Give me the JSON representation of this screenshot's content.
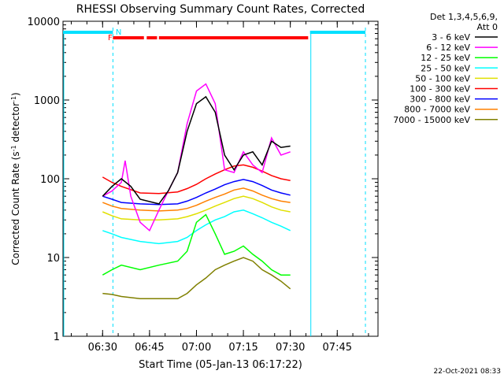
{
  "chart_data": {
    "type": "line",
    "title": "RHESSI Observing Summary Count Rates, Corrected",
    "xlabel": "Start Time (05-Jan-13 06:17:22)",
    "ylabel_main": "Corrected Count Rate (s",
    "ylabel_sup1": "-1",
    "ylabel_mid": " detector",
    "ylabel_sup2": "-1",
    "ylabel_end": ")",
    "y_scale": "log",
    "ylim": [
      1,
      10000
    ],
    "xlim": [
      6.289,
      7.967
    ],
    "x_ticks": [
      {
        "v": 6.5,
        "label": "06:30"
      },
      {
        "v": 6.75,
        "label": "06:45"
      },
      {
        "v": 7.0,
        "label": "07:00"
      },
      {
        "v": 7.25,
        "label": "07:15"
      },
      {
        "v": 7.5,
        "label": "07:30"
      },
      {
        "v": 7.75,
        "label": "07:45"
      }
    ],
    "y_ticks": [
      {
        "v": 1,
        "label": "1"
      },
      {
        "v": 10,
        "label": "10"
      },
      {
        "v": 100,
        "label": "100"
      },
      {
        "v": 1000,
        "label": "1000"
      },
      {
        "v": 10000,
        "label": "10000"
      }
    ],
    "legend_header": [
      "Det 1,3,4,5,6,9,",
      "Att 0"
    ],
    "legend_position": "right",
    "flags": [
      {
        "label": "F",
        "color": "#ff0000"
      },
      {
        "label": "N",
        "color": "#00e0ff"
      }
    ],
    "series": [
      {
        "name": "3 - 6 keV",
        "color": "#000000",
        "points": [
          [
            6.5,
            60
          ],
          [
            6.55,
            80
          ],
          [
            6.6,
            100
          ],
          [
            6.65,
            80
          ],
          [
            6.7,
            55
          ],
          [
            6.8,
            48
          ],
          [
            6.85,
            70
          ],
          [
            6.9,
            120
          ],
          [
            6.95,
            400
          ],
          [
            7.0,
            900
          ],
          [
            7.05,
            1100
          ],
          [
            7.1,
            700
          ],
          [
            7.15,
            200
          ],
          [
            7.2,
            130
          ],
          [
            7.25,
            200
          ],
          [
            7.3,
            220
          ],
          [
            7.35,
            150
          ],
          [
            7.4,
            300
          ],
          [
            7.45,
            250
          ],
          [
            7.5,
            260
          ]
        ]
      },
      {
        "name": "6 - 12 keV",
        "color": "#ff00ff",
        "points": [
          [
            6.5,
            60
          ],
          [
            6.55,
            70
          ],
          [
            6.6,
            90
          ],
          [
            6.62,
            170
          ],
          [
            6.65,
            60
          ],
          [
            6.7,
            28
          ],
          [
            6.75,
            22
          ],
          [
            6.8,
            40
          ],
          [
            6.85,
            70
          ],
          [
            6.9,
            120
          ],
          [
            6.95,
            500
          ],
          [
            7.0,
            1300
          ],
          [
            7.05,
            1600
          ],
          [
            7.1,
            900
          ],
          [
            7.15,
            130
          ],
          [
            7.2,
            120
          ],
          [
            7.25,
            220
          ],
          [
            7.3,
            150
          ],
          [
            7.35,
            120
          ],
          [
            7.4,
            330
          ],
          [
            7.45,
            200
          ],
          [
            7.5,
            220
          ]
        ]
      },
      {
        "name": "12 - 25 keV",
        "color": "#00ff00",
        "points": [
          [
            6.5,
            6
          ],
          [
            6.55,
            7
          ],
          [
            6.6,
            8
          ],
          [
            6.7,
            7
          ],
          [
            6.8,
            8
          ],
          [
            6.9,
            9
          ],
          [
            6.95,
            12
          ],
          [
            7.0,
            28
          ],
          [
            7.05,
            35
          ],
          [
            7.1,
            20
          ],
          [
            7.15,
            11
          ],
          [
            7.2,
            12
          ],
          [
            7.25,
            14
          ],
          [
            7.3,
            11
          ],
          [
            7.35,
            9
          ],
          [
            7.4,
            7
          ],
          [
            7.45,
            6
          ],
          [
            7.5,
            6
          ]
        ]
      },
      {
        "name": "25 - 50 keV",
        "color": "#00ffff",
        "points": [
          [
            6.5,
            22
          ],
          [
            6.55,
            20
          ],
          [
            6.6,
            18
          ],
          [
            6.7,
            16
          ],
          [
            6.8,
            15
          ],
          [
            6.9,
            16
          ],
          [
            6.95,
            18
          ],
          [
            7.0,
            22
          ],
          [
            7.05,
            26
          ],
          [
            7.1,
            30
          ],
          [
            7.15,
            33
          ],
          [
            7.2,
            38
          ],
          [
            7.25,
            40
          ],
          [
            7.3,
            36
          ],
          [
            7.35,
            32
          ],
          [
            7.4,
            28
          ],
          [
            7.45,
            25
          ],
          [
            7.5,
            22
          ]
        ]
      },
      {
        "name": "50 - 100 keV",
        "color": "#e0e000",
        "points": [
          [
            6.5,
            38
          ],
          [
            6.55,
            34
          ],
          [
            6.6,
            31
          ],
          [
            6.7,
            30
          ],
          [
            6.8,
            30
          ],
          [
            6.9,
            31
          ],
          [
            6.95,
            33
          ],
          [
            7.0,
            36
          ],
          [
            7.05,
            40
          ],
          [
            7.1,
            45
          ],
          [
            7.15,
            50
          ],
          [
            7.2,
            56
          ],
          [
            7.25,
            60
          ],
          [
            7.3,
            56
          ],
          [
            7.35,
            50
          ],
          [
            7.4,
            44
          ],
          [
            7.45,
            40
          ],
          [
            7.5,
            38
          ]
        ]
      },
      {
        "name": "100 - 300 keV",
        "color": "#ff0000",
        "points": [
          [
            6.5,
            105
          ],
          [
            6.55,
            90
          ],
          [
            6.6,
            80
          ],
          [
            6.7,
            66
          ],
          [
            6.8,
            65
          ],
          [
            6.9,
            68
          ],
          [
            6.95,
            75
          ],
          [
            7.0,
            85
          ],
          [
            7.05,
            100
          ],
          [
            7.1,
            115
          ],
          [
            7.15,
            130
          ],
          [
            7.2,
            145
          ],
          [
            7.25,
            150
          ],
          [
            7.3,
            140
          ],
          [
            7.35,
            125
          ],
          [
            7.4,
            110
          ],
          [
            7.45,
            100
          ],
          [
            7.5,
            95
          ]
        ]
      },
      {
        "name": "300 - 800 keV",
        "color": "#0000ff",
        "points": [
          [
            6.5,
            60
          ],
          [
            6.55,
            55
          ],
          [
            6.6,
            50
          ],
          [
            6.7,
            48
          ],
          [
            6.8,
            47
          ],
          [
            6.9,
            48
          ],
          [
            6.95,
            52
          ],
          [
            7.0,
            58
          ],
          [
            7.05,
            66
          ],
          [
            7.1,
            74
          ],
          [
            7.15,
            84
          ],
          [
            7.2,
            92
          ],
          [
            7.25,
            98
          ],
          [
            7.3,
            92
          ],
          [
            7.35,
            82
          ],
          [
            7.4,
            72
          ],
          [
            7.45,
            66
          ],
          [
            7.5,
            62
          ]
        ]
      },
      {
        "name": "800 - 7000 keV",
        "color": "#ff8000",
        "points": [
          [
            6.5,
            50
          ],
          [
            6.55,
            45
          ],
          [
            6.6,
            42
          ],
          [
            6.7,
            40
          ],
          [
            6.8,
            39
          ],
          [
            6.9,
            40
          ],
          [
            6.95,
            42
          ],
          [
            7.0,
            46
          ],
          [
            7.05,
            52
          ],
          [
            7.1,
            58
          ],
          [
            7.15,
            64
          ],
          [
            7.2,
            72
          ],
          [
            7.25,
            76
          ],
          [
            7.3,
            70
          ],
          [
            7.35,
            62
          ],
          [
            7.4,
            56
          ],
          [
            7.45,
            52
          ],
          [
            7.5,
            50
          ]
        ]
      },
      {
        "name": "7000 - 15000 keV",
        "color": "#808000",
        "points": [
          [
            6.5,
            3.5
          ],
          [
            6.55,
            3.4
          ],
          [
            6.6,
            3.2
          ],
          [
            6.7,
            3.0
          ],
          [
            6.8,
            3.0
          ],
          [
            6.9,
            3.0
          ],
          [
            6.95,
            3.5
          ],
          [
            7.0,
            4.5
          ],
          [
            7.05,
            5.5
          ],
          [
            7.1,
            7
          ],
          [
            7.15,
            8
          ],
          [
            7.2,
            9
          ],
          [
            7.25,
            10
          ],
          [
            7.3,
            9
          ],
          [
            7.35,
            7
          ],
          [
            7.4,
            6
          ],
          [
            7.45,
            5
          ],
          [
            7.5,
            4
          ]
        ]
      }
    ]
  },
  "footer_timestamp": "22-Oct-2021 08:33"
}
